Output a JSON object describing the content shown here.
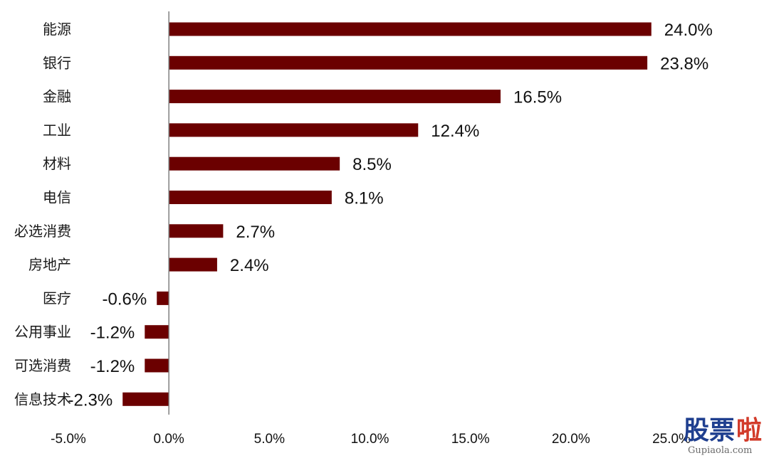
{
  "chart_data": {
    "type": "bar",
    "orientation": "horizontal",
    "title": "",
    "xlabel": "",
    "ylabel": "",
    "categories": [
      "能源",
      "银行",
      "金融",
      "工业",
      "材料",
      "电信",
      "必选消费",
      "房地产",
      "医疗",
      "公用事业",
      "可选消费",
      "信息技术"
    ],
    "values": [
      24.0,
      23.8,
      16.5,
      12.4,
      8.5,
      8.1,
      2.7,
      2.4,
      -0.6,
      -1.2,
      -1.2,
      -2.3
    ],
    "value_labels": [
      "24.0%",
      "23.8%",
      "16.5%",
      "12.4%",
      "8.5%",
      "8.1%",
      "2.7%",
      "2.4%",
      "-0.6%",
      "-1.2%",
      "-1.2%",
      "-2.3%"
    ],
    "xlim": [
      -5.0,
      25.0
    ],
    "x_ticks": [
      -5.0,
      0.0,
      5.0,
      10.0,
      15.0,
      20.0,
      25.0
    ],
    "x_tick_labels": [
      "-5.0%",
      "0.0%",
      "5.0%",
      "10.0%",
      "15.0%",
      "20.0%",
      "25.0%"
    ],
    "grid": false,
    "legend": "none",
    "bar_color": "#6b0000"
  },
  "watermark": {
    "text_main": "股票",
    "text_accent": "啦",
    "text_sub": "Gupiaola.com",
    "color_main": "#1f3f8f",
    "color_accent": "#d23b2a"
  }
}
